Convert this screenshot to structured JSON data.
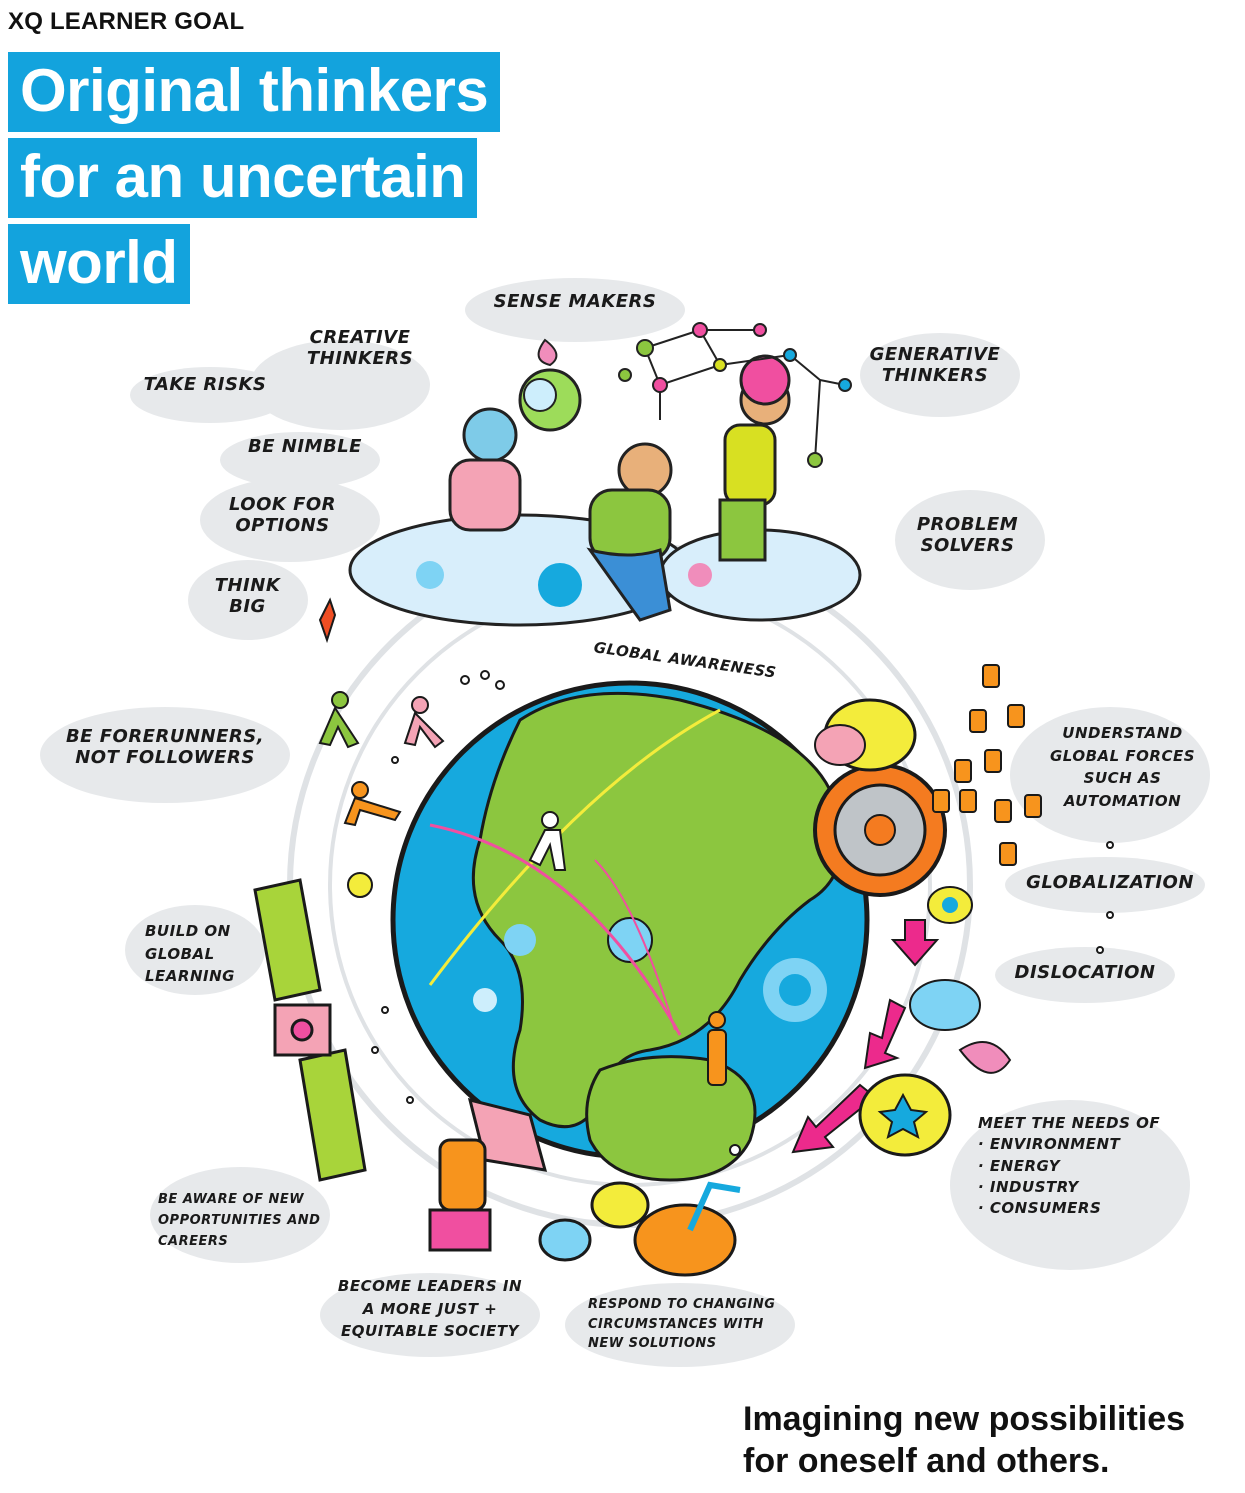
{
  "header": {
    "eyebrow": "XQ LEARNER GOAL",
    "title_lines": [
      "Original thinkers",
      "for an uncertain",
      "world"
    ]
  },
  "labels": {
    "sense_makers": "Sense Makers",
    "creative_thinkers": [
      "Creative",
      "Thinkers"
    ],
    "generative_thinkers": [
      "Generative",
      "Thinkers"
    ],
    "take_risks": "Take Risks",
    "be_nimble": "Be Nimble",
    "look_for_options": [
      "Look for",
      "options"
    ],
    "think_big": [
      "Think",
      "Big"
    ],
    "problem_solvers": [
      "Problem",
      "Solvers"
    ],
    "global_awareness": "Global Awareness",
    "forerunners": [
      "Be forerunners,",
      "not followers"
    ],
    "understand_forces": [
      "Understand",
      "global forces",
      "such as",
      "automation"
    ],
    "globalization": "Globalization",
    "dislocation": "Dislocation",
    "build_on_learning": [
      "Build on",
      "global",
      "learning"
    ],
    "meet_needs_title": "Meet the needs of",
    "meet_needs_items": [
      "Environment",
      "Energy",
      "Industry",
      "Consumers"
    ],
    "opportunities": [
      "Be aware of new",
      "opportunities and",
      "careers"
    ],
    "leaders": [
      "Become leaders in",
      "a More just +",
      "equitable society"
    ],
    "respond": [
      "respond to changing",
      "circumstances with",
      "new solutions"
    ]
  },
  "tagline": [
    "Imagining new possibilities",
    "for oneself and others."
  ],
  "colors": {
    "title_bg": "#13a3dd",
    "ocean": "#16a9de",
    "land": "#8cc63f",
    "cloud": "#e6e8ea",
    "arrow": "#ec2a8c",
    "gear": "#f47b20"
  }
}
